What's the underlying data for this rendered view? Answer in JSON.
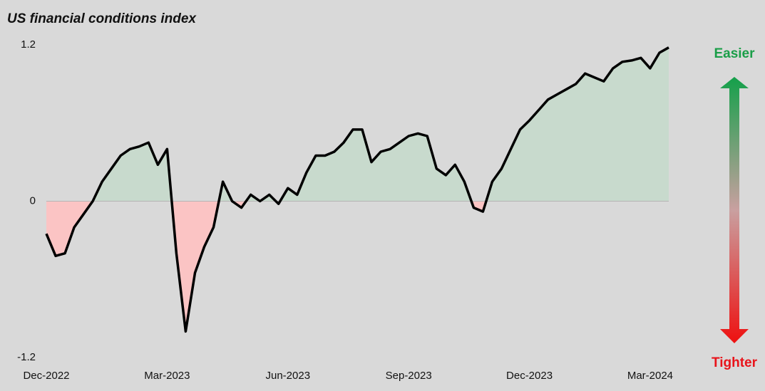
{
  "chart_data": {
    "type": "line",
    "title": "US financial conditions index",
    "categories": [
      "Dec-2022",
      null,
      null,
      null,
      null,
      null,
      null,
      null,
      null,
      null,
      null,
      null,
      null,
      "Mar-2023",
      null,
      null,
      null,
      null,
      null,
      null,
      null,
      null,
      null,
      null,
      null,
      null,
      "Jun-2023",
      null,
      null,
      null,
      null,
      null,
      null,
      null,
      null,
      null,
      null,
      null,
      null,
      "Sep-2023",
      null,
      null,
      null,
      null,
      null,
      null,
      null,
      null,
      null,
      null,
      null,
      null,
      "Dec-2023",
      null,
      null,
      null,
      null,
      null,
      null,
      null,
      null,
      null,
      null,
      null,
      null,
      "Mar-2024",
      null,
      null
    ],
    "values": [
      -0.25,
      -0.42,
      -0.4,
      -0.2,
      -0.1,
      0.0,
      0.15,
      0.25,
      0.35,
      0.4,
      0.42,
      0.45,
      0.28,
      0.4,
      -0.4,
      -1.0,
      -0.55,
      -0.35,
      -0.2,
      0.15,
      0.0,
      -0.05,
      0.05,
      0.0,
      0.05,
      -0.02,
      0.1,
      0.05,
      0.22,
      0.35,
      0.35,
      0.38,
      0.45,
      0.55,
      0.55,
      0.3,
      0.38,
      0.4,
      0.45,
      0.5,
      0.52,
      0.5,
      0.25,
      0.2,
      0.28,
      0.15,
      -0.05,
      -0.08,
      0.15,
      0.25,
      0.4,
      0.55,
      0.62,
      0.7,
      0.78,
      0.82,
      0.86,
      0.9,
      0.98,
      0.95,
      0.92,
      1.02,
      1.07,
      1.08,
      1.1,
      1.02,
      1.14,
      1.18
    ],
    "color": "#000000",
    "fill_above": "#c8dacd",
    "fill_below": "#fbc4c4",
    "zero_line_color": "#b5b5b5",
    "ylim": [
      -1.2,
      1.2
    ],
    "yticks": [
      -1.2,
      0,
      1.2
    ],
    "annotations": [
      {
        "text": "Easier",
        "color": "#1a9e48"
      },
      {
        "text": "Tighter",
        "color": "#e8141b"
      }
    ]
  }
}
